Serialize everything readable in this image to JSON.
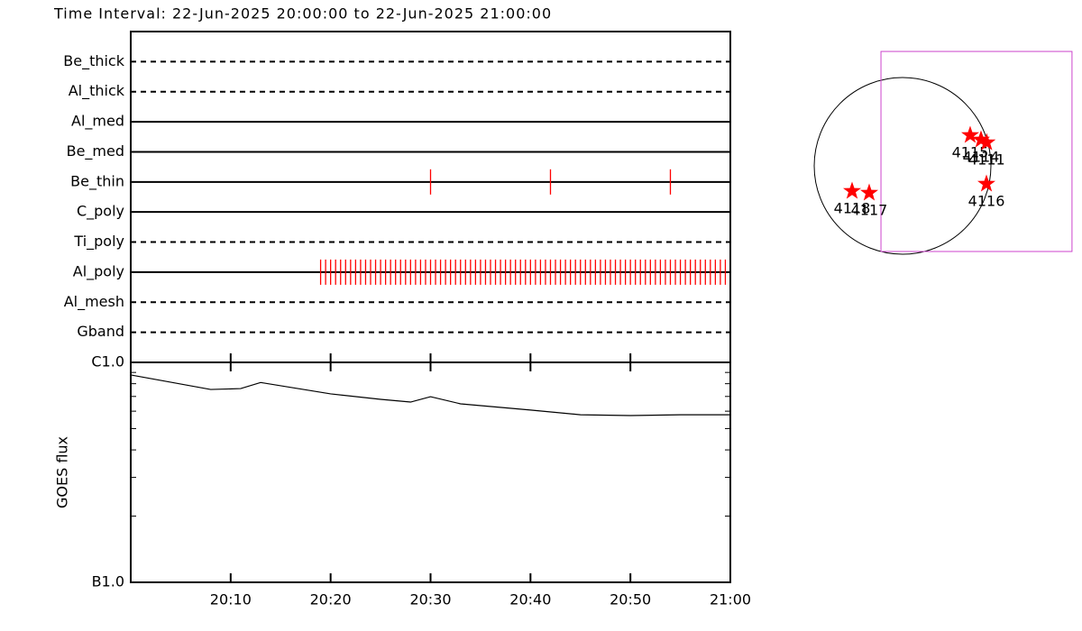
{
  "chart_data": [
    {
      "type": "timeline",
      "title": "Time Interval: 22-Jun-2025 20:00:00 to 22-Jun-2025 21:00:00",
      "categories": [
        "Be_thick",
        "Al_thick",
        "Al_med",
        "Be_med",
        "Be_thin",
        "C_poly",
        "Ti_poly",
        "Al_poly",
        "Al_mesh",
        "Gband"
      ],
      "line_styles": [
        "dashed",
        "dashed",
        "solid",
        "solid",
        "solid",
        "solid",
        "dashed",
        "solid",
        "dashed",
        "dashed"
      ],
      "xlim": [
        0,
        60
      ],
      "series": [
        {
          "row": 4,
          "color": "#ff0000",
          "x": [
            30,
            42,
            54
          ]
        },
        {
          "row": 7,
          "color": "#ff0000",
          "x": [
            19,
            19.5,
            20,
            20.5,
            21,
            21.5,
            22,
            22.5,
            23,
            23.5,
            24,
            24.5,
            25,
            25.5,
            26,
            26.5,
            27,
            27.5,
            28,
            28.5,
            29,
            29.5,
            30,
            30.5,
            31,
            31.5,
            32,
            32.5,
            33,
            33.5,
            34,
            34.5,
            35,
            35.5,
            36,
            36.5,
            37,
            37.5,
            38,
            38.5,
            39,
            39.5,
            40,
            40.5,
            41,
            41.5,
            42,
            42.5,
            43,
            43.5,
            44,
            44.5,
            45,
            45.5,
            46,
            46.5,
            47,
            47.5,
            48,
            48.5,
            49,
            49.5,
            50,
            50.5,
            51,
            51.5,
            52,
            52.5,
            53,
            53.5,
            54,
            54.5,
            55,
            55.5,
            56,
            56.5,
            57,
            57.5,
            58,
            58.5,
            59,
            59.5
          ]
        }
      ]
    },
    {
      "type": "line",
      "ylabel": "GOES flux",
      "ylog": true,
      "color": "#000000",
      "xlim": [
        0,
        60
      ],
      "xticks": [
        {
          "value": 10,
          "label": "20:10"
        },
        {
          "value": 20,
          "label": "20:20"
        },
        {
          "value": 30,
          "label": "20:30"
        },
        {
          "value": 40,
          "label": "20:40"
        },
        {
          "value": 50,
          "label": "20:50"
        },
        {
          "value": 60,
          "label": "21:00"
        }
      ],
      "ylim": [
        1e-07,
        1e-06
      ],
      "yticks": [
        {
          "value": 1e-07,
          "label": "B1.0"
        },
        {
          "value": 1e-06,
          "label": "C1.0"
        }
      ],
      "minor_yticks": [
        2e-07,
        3e-07,
        4e-07,
        5e-07,
        6e-07,
        7e-07,
        8e-07,
        9e-07
      ],
      "x": [
        0,
        8,
        11,
        13,
        20,
        25,
        28,
        30,
        33,
        40,
        45,
        50,
        55,
        60
      ],
      "values": [
        8.77e-07,
        7.53e-07,
        7.6e-07,
        8.1e-07,
        7.19e-07,
        6.79e-07,
        6.6e-07,
        6.98e-07,
        6.48e-07,
        6.07e-07,
        5.78e-07,
        5.73e-07,
        5.78e-07,
        5.78e-07
      ]
    },
    {
      "type": "map",
      "rsun": 945,
      "fov": {
        "x": [
          -231,
          1812
        ],
        "y": [
          -916,
          1224
        ]
      },
      "fov_color": "#cc44cc",
      "color": "#ff0000",
      "labels": [
        "4115",
        "4114",
        "4111",
        "4116",
        "4118",
        "4117"
      ],
      "x": [
        723,
        839,
        900,
        897,
        -540,
        -357
      ],
      "values": [
        328,
        280,
        250,
        -193,
        -270,
        -289
      ]
    }
  ]
}
